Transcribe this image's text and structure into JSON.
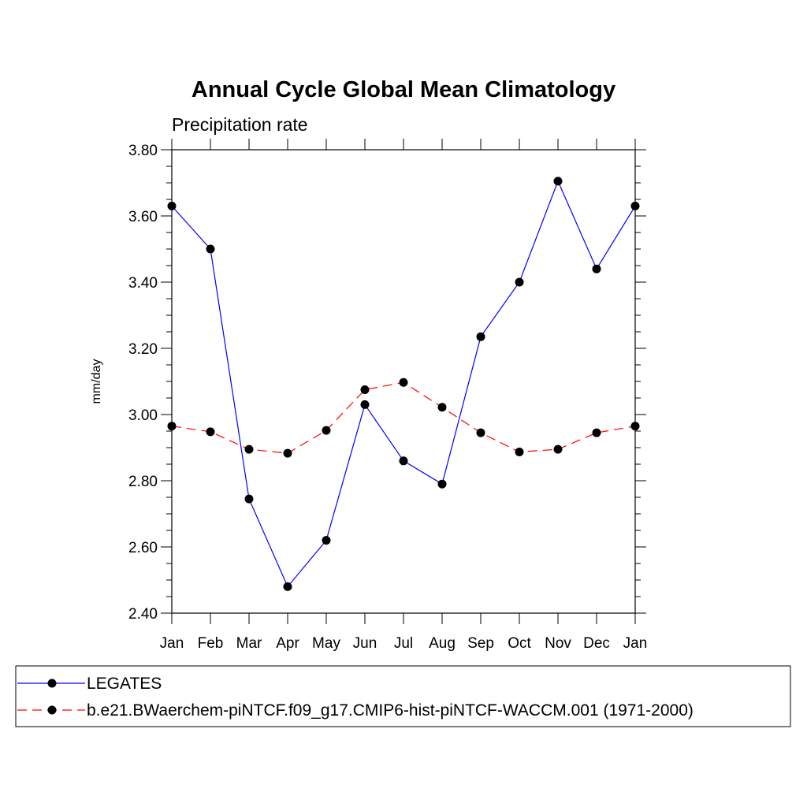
{
  "chart_data": {
    "type": "line",
    "title": "Annual Cycle Global Mean Climatology",
    "subtitle": "Precipitation rate",
    "xlabel": "",
    "ylabel": "mm/day",
    "categories": [
      "Jan",
      "Feb",
      "Mar",
      "Apr",
      "May",
      "Jun",
      "Jul",
      "Aug",
      "Sep",
      "Oct",
      "Nov",
      "Dec",
      "Jan"
    ],
    "ylim": [
      2.4,
      3.8
    ],
    "yticks": [
      "2.40",
      "2.60",
      "2.80",
      "3.00",
      "3.20",
      "3.40",
      "3.60",
      "3.80"
    ],
    "grid": false,
    "legend_position": "bottom",
    "series": [
      {
        "name": "LEGATES",
        "color": "#0000ff",
        "dash": "solid",
        "marker": "filled-circle",
        "values": [
          3.63,
          3.5,
          2.745,
          2.48,
          2.62,
          3.03,
          2.86,
          2.79,
          3.235,
          3.4,
          3.705,
          3.44,
          3.63
        ]
      },
      {
        "name": "b.e21.BWaerchem-piNTCF.f09_g17.CMIP6-hist-piNTCF-WACCM.001 (1971-2000)",
        "color": "#ff0000",
        "dash": "dashed",
        "marker": "filled-circle",
        "values": [
          2.965,
          2.948,
          2.895,
          2.883,
          2.952,
          3.075,
          3.097,
          3.022,
          2.945,
          2.887,
          2.895,
          2.945,
          2.965
        ]
      }
    ]
  }
}
